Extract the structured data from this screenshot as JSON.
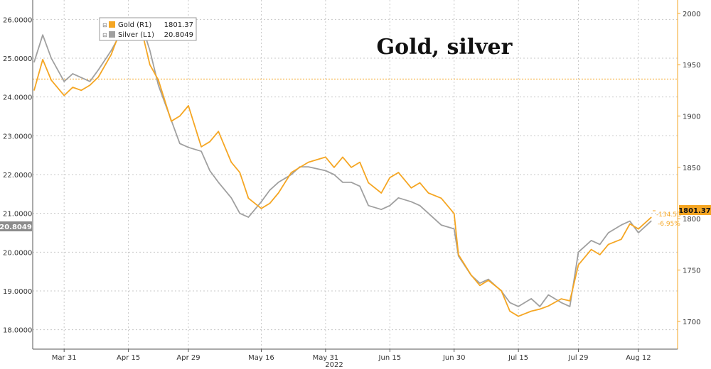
{
  "chart_data": {
    "type": "line",
    "title": "Gold, silver",
    "x_axis_year": "2022",
    "x_ticks": [
      "Mar 31",
      "Apr 15",
      "Apr 29",
      "May 16",
      "May 31",
      "Jun 15",
      "Jun 30",
      "Jul 15",
      "Jul 29",
      "Aug 12"
    ],
    "y_left": {
      "ticks": [
        "18.0000",
        "19.0000",
        "20.0000",
        "21.0000",
        "22.0000",
        "23.0000",
        "24.0000",
        "25.0000",
        "26.0000"
      ],
      "range": [
        17.5,
        26.5
      ]
    },
    "y_right": {
      "ticks": [
        "1700",
        "1750",
        "1800",
        "1850",
        "1900",
        "1950",
        "2000"
      ],
      "range": [
        1673,
        2013
      ]
    },
    "legend": [
      {
        "label": "Gold (R1)",
        "value": "1801.37",
        "color": "#f5a623"
      },
      {
        "label": "Silver (L1)",
        "value": "20.8049",
        "color": "#a0a0a0"
      }
    ],
    "badges": {
      "gold_last": "1801.37",
      "silver_last": "20.8049"
    },
    "annotations": {
      "change_abs": "-134.53",
      "change_pct": "-6.95%"
    },
    "reference_line": {
      "axis": "right",
      "value": 1936
    },
    "series": [
      {
        "name": "Gold (R1)",
        "axis": "right",
        "color": "#f5a623",
        "x": [
          "Mar 24",
          "Mar 26",
          "Mar 28",
          "Mar 31",
          "Apr 2",
          "Apr 4",
          "Apr 6",
          "Apr 8",
          "Apr 11",
          "Apr 13",
          "Apr 15",
          "Apr 18",
          "Apr 20",
          "Apr 22",
          "Apr 25",
          "Apr 27",
          "Apr 29",
          "May 2",
          "May 4",
          "May 6",
          "May 9",
          "May 11",
          "May 13",
          "May 16",
          "May 18",
          "May 20",
          "May 23",
          "May 25",
          "May 27",
          "May 31",
          "Jun 2",
          "Jun 4",
          "Jun 6",
          "Jun 8",
          "Jun 10",
          "Jun 13",
          "Jun 15",
          "Jun 17",
          "Jun 20",
          "Jun 22",
          "Jun 24",
          "Jun 27",
          "Jun 30",
          "Jul 1",
          "Jul 4",
          "Jul 6",
          "Jul 8",
          "Jul 11",
          "Jul 13",
          "Jul 15",
          "Jul 18",
          "Jul 20",
          "Jul 22",
          "Jul 25",
          "Jul 27",
          "Jul 29",
          "Aug 1",
          "Aug 3",
          "Aug 5",
          "Aug 8",
          "Aug 10",
          "Aug 12",
          "Aug 15"
        ],
        "values": [
          1925,
          1955,
          1935,
          1920,
          1928,
          1925,
          1930,
          1938,
          1960,
          1982,
          1975,
          1985,
          1950,
          1935,
          1895,
          1900,
          1910,
          1870,
          1875,
          1885,
          1855,
          1845,
          1820,
          1810,
          1815,
          1825,
          1845,
          1850,
          1855,
          1860,
          1850,
          1860,
          1850,
          1855,
          1835,
          1825,
          1840,
          1845,
          1830,
          1835,
          1825,
          1820,
          1805,
          1765,
          1745,
          1735,
          1740,
          1730,
          1710,
          1705,
          1710,
          1712,
          1715,
          1722,
          1720,
          1755,
          1770,
          1765,
          1775,
          1780,
          1795,
          1790,
          1801.37
        ]
      },
      {
        "name": "Silver (L1)",
        "axis": "left",
        "color": "#a0a0a0",
        "x": [
          "Mar 24",
          "Mar 26",
          "Mar 28",
          "Mar 31",
          "Apr 2",
          "Apr 4",
          "Apr 6",
          "Apr 8",
          "Apr 11",
          "Apr 13",
          "Apr 15",
          "Apr 18",
          "Apr 20",
          "Apr 22",
          "Apr 25",
          "Apr 27",
          "Apr 29",
          "May 2",
          "May 4",
          "May 6",
          "May 9",
          "May 11",
          "May 13",
          "May 16",
          "May 18",
          "May 20",
          "May 23",
          "May 25",
          "May 27",
          "May 31",
          "Jun 2",
          "Jun 4",
          "Jun 6",
          "Jun 8",
          "Jun 10",
          "Jun 13",
          "Jun 15",
          "Jun 17",
          "Jun 20",
          "Jun 22",
          "Jun 24",
          "Jun 27",
          "Jun 30",
          "Jul 1",
          "Jul 4",
          "Jul 6",
          "Jul 8",
          "Jul 11",
          "Jul 13",
          "Jul 15",
          "Jul 18",
          "Jul 20",
          "Jul 22",
          "Jul 25",
          "Jul 27",
          "Jul 29",
          "Aug 1",
          "Aug 3",
          "Aug 5",
          "Aug 8",
          "Aug 10",
          "Aug 12",
          "Aug 15"
        ],
        "values": [
          24.9,
          25.6,
          25.0,
          24.4,
          24.6,
          24.5,
          24.4,
          24.7,
          25.2,
          25.6,
          25.8,
          25.9,
          25.2,
          24.3,
          23.4,
          22.8,
          22.7,
          22.6,
          22.1,
          21.8,
          21.4,
          21.0,
          20.9,
          21.3,
          21.6,
          21.8,
          22.0,
          22.2,
          22.2,
          22.1,
          22.0,
          21.8,
          21.8,
          21.7,
          21.2,
          21.1,
          21.2,
          21.4,
          21.3,
          21.2,
          21.0,
          20.7,
          20.6,
          19.9,
          19.4,
          19.2,
          19.3,
          19.0,
          18.7,
          18.6,
          18.8,
          18.6,
          18.9,
          18.7,
          18.6,
          20.0,
          20.3,
          20.2,
          20.5,
          20.7,
          20.8,
          20.5,
          20.8049
        ]
      }
    ]
  }
}
